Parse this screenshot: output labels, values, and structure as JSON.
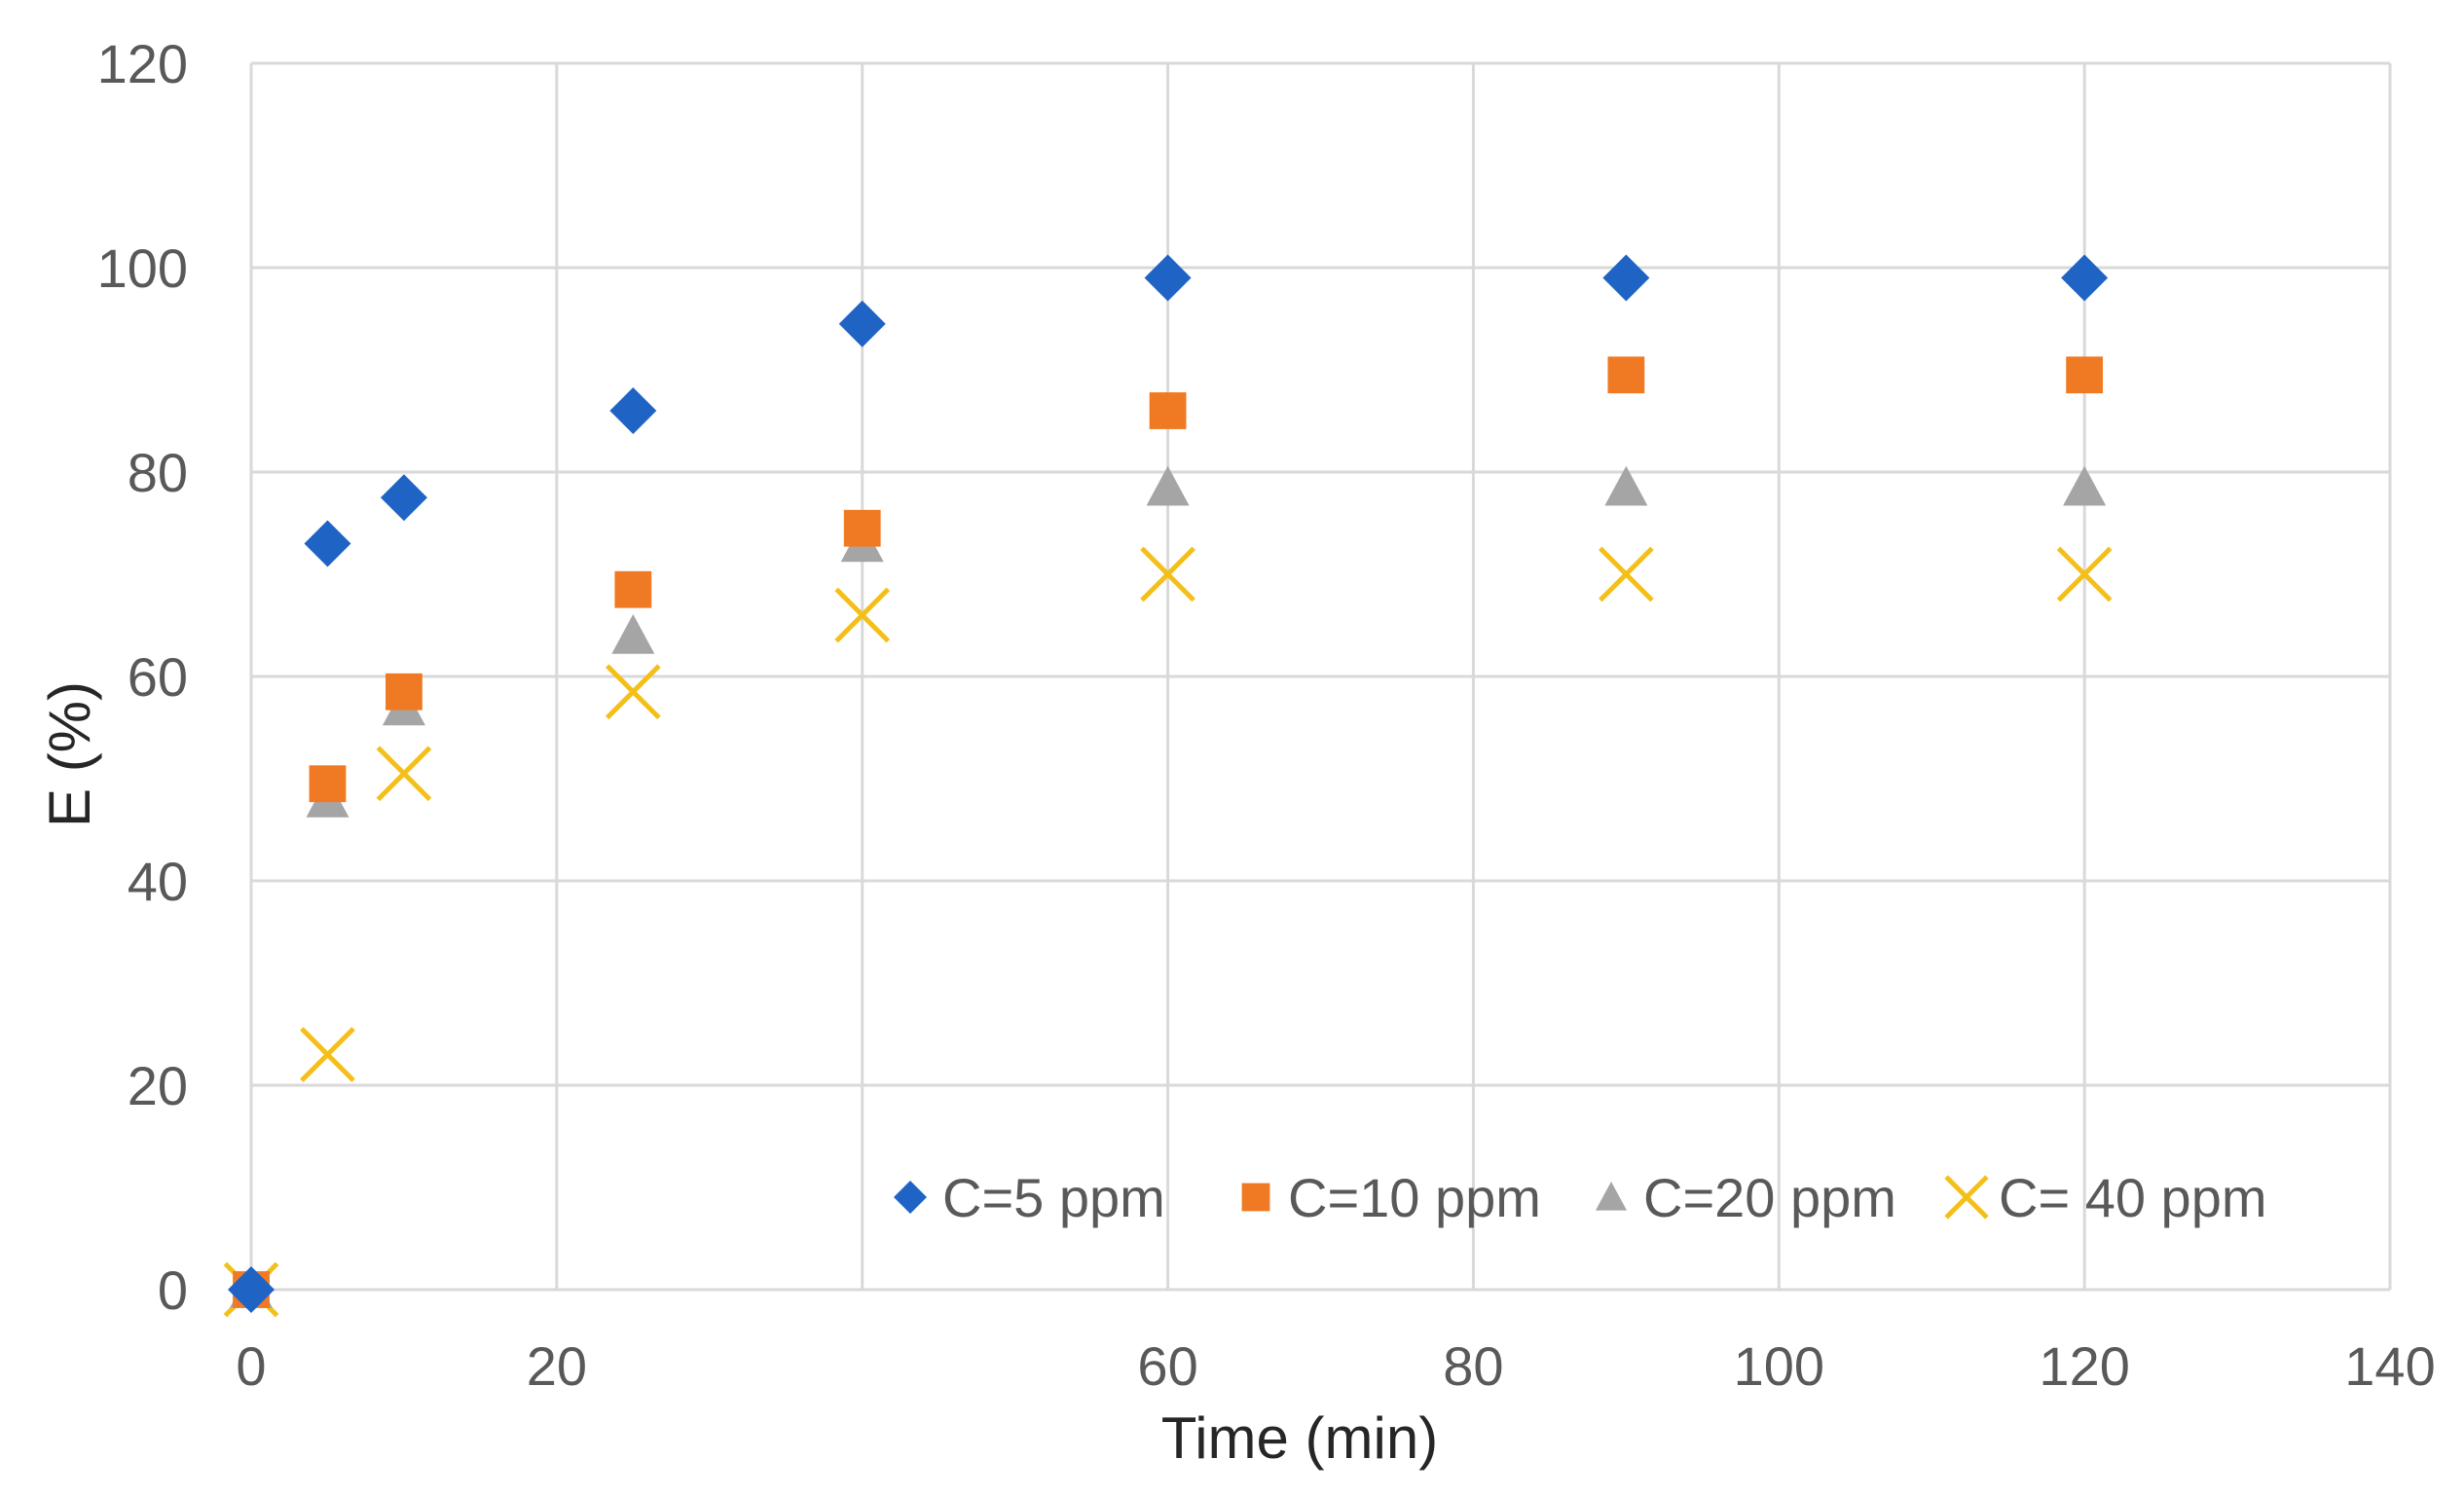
{
  "chart_data": {
    "type": "scatter",
    "title": "",
    "xlabel": "Time (min)",
    "ylabel": "E (%)",
    "xlim": [
      0,
      140
    ],
    "ylim": [
      0,
      120
    ],
    "xticks": [
      0,
      20,
      60,
      80,
      100,
      120,
      140
    ],
    "yticks": [
      0,
      20,
      40,
      60,
      80,
      100,
      120
    ],
    "grid": true,
    "legend_position": "bottom-right-inside",
    "series": [
      {
        "name": "C=5 ppm",
        "marker": "diamond",
        "color": "#1f64c4",
        "x": [
          0,
          5,
          10,
          25,
          40,
          60,
          90,
          120
        ],
        "y": [
          0,
          73,
          77.5,
          86,
          94.5,
          99,
          99,
          99
        ]
      },
      {
        "name": "C=10 ppm",
        "marker": "square",
        "color": "#f07a23",
        "x": [
          0,
          5,
          10,
          25,
          40,
          60,
          90,
          120
        ],
        "y": [
          0,
          49.5,
          58.5,
          68.5,
          74.5,
          86,
          89.5,
          89.5
        ]
      },
      {
        "name": "C=20 ppm",
        "marker": "triangle",
        "color": "#a5a5a5",
        "x": [
          0,
          5,
          10,
          25,
          40,
          60,
          90,
          120
        ],
        "y": [
          0,
          48,
          57,
          64,
          73,
          78.5,
          78.5,
          78.5
        ]
      },
      {
        "name": "C= 40 ppm",
        "marker": "x",
        "color": "#f5bf1a",
        "x": [
          0,
          5,
          10,
          25,
          40,
          60,
          90,
          120
        ],
        "y": [
          0,
          23,
          50.5,
          58.5,
          66,
          70,
          70,
          70
        ]
      }
    ]
  }
}
